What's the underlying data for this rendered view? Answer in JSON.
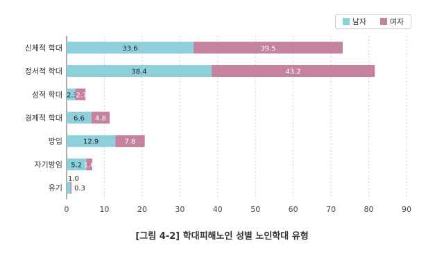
{
  "chart_data": {
    "type": "bar",
    "stacked": true,
    "orientation": "horizontal",
    "title": "[그림 4-2] 학대피해노인 성별 노인학대 유형",
    "categories": [
      "신체적 학대",
      "정서적 학대",
      "성적 학대",
      "경제적 학대",
      "방임",
      "자기방임",
      "유기"
    ],
    "series": [
      {
        "name": "남자",
        "color": "#8ecfdc",
        "values": [
          33.6,
          38.4,
          2.3,
          6.6,
          12.9,
          5.2,
          1.0
        ]
      },
      {
        "name": "여자",
        "color": "#c4829f",
        "values": [
          39.5,
          43.2,
          2.7,
          4.8,
          7.8,
          1.6,
          0.3
        ]
      }
    ],
    "xlim": [
      0,
      90
    ],
    "xticks": [
      "0",
      "10",
      "20",
      "30",
      "40",
      "50",
      "60",
      "70",
      "80",
      "90"
    ],
    "grid": "vertical dashed",
    "legend": "top-right"
  }
}
